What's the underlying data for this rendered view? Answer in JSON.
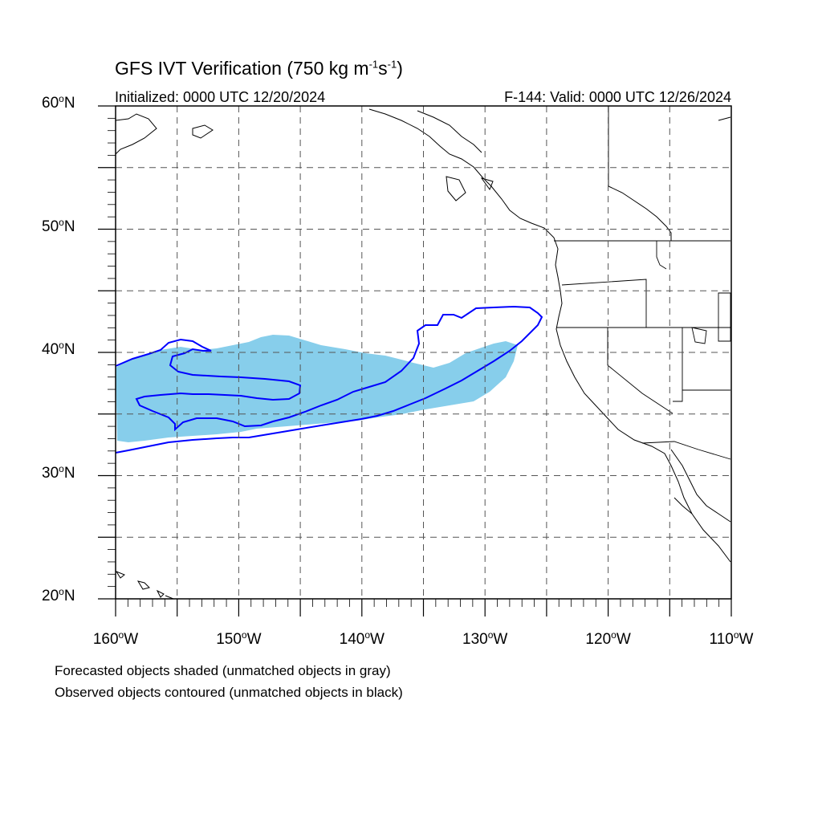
{
  "figure": {
    "title_main": "GFS IVT Verification (750 kg m",
    "title_exp1": "-1",
    "title_mid": "s",
    "title_exp2": "-1",
    "title_end": ")",
    "initialized": "Initialized: 0000 UTC 12/20/2024",
    "valid": "F-144: Valid: 0000 UTC 12/26/2024",
    "footnote_forecast": "Forecasted objects shaded (unmatched objects in gray)",
    "footnote_observed": "Observed objects contoured (unmatched objects in black)"
  },
  "axes": {
    "lat_labels": [
      {
        "value": 60,
        "text": "60",
        "suffix": "N"
      },
      {
        "value": 50,
        "text": "50",
        "suffix": "N"
      },
      {
        "value": 40,
        "text": "40",
        "suffix": "N"
      },
      {
        "value": 30,
        "text": "30",
        "suffix": "N"
      },
      {
        "value": 20,
        "text": "20",
        "suffix": "N"
      }
    ],
    "lon_labels": [
      {
        "value": -160,
        "text": "160",
        "suffix": "W"
      },
      {
        "value": -150,
        "text": "150",
        "suffix": "W"
      },
      {
        "value": -140,
        "text": "140",
        "suffix": "W"
      },
      {
        "value": -130,
        "text": "130",
        "suffix": "W"
      },
      {
        "value": -120,
        "text": "120",
        "suffix": "W"
      },
      {
        "value": -110,
        "text": "110",
        "suffix": "W"
      }
    ],
    "lon_range": [
      -160,
      -110
    ],
    "lat_range": [
      20,
      60
    ],
    "grid_spacing_deg": 5,
    "grid": "dashed"
  },
  "colors": {
    "forecast_fill": "#87ceeb",
    "observed_contour": "#0000ff",
    "coastline": "#000000",
    "grid": "#555555"
  }
}
